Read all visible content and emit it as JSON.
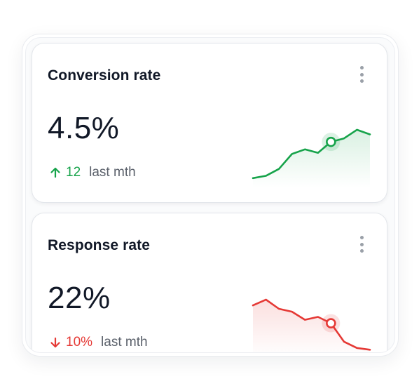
{
  "cards": [
    {
      "title": "Conversion rate",
      "value": "4.5%",
      "delta": "12",
      "direction": "up",
      "period": "last mth",
      "color": "#16a34a",
      "menu_icon": "more-vertical-icon",
      "trend_icon": "arrow-up-icon",
      "sparkline": {
        "values": [
          1.0,
          1.4,
          2.6,
          5.2,
          6.0,
          5.4,
          7.3,
          7.9,
          9.4,
          8.6
        ],
        "highlight_index": 6
      }
    },
    {
      "title": "Response rate",
      "value": "22%",
      "delta": "10%",
      "direction": "down",
      "period": "last mth",
      "color": "#e53935",
      "menu_icon": "more-vertical-icon",
      "trend_icon": "arrow-down-icon",
      "sparkline": {
        "values": [
          8.4,
          9.4,
          7.8,
          7.3,
          5.9,
          6.4,
          5.3,
          2.1,
          1.0,
          0.7
        ],
        "highlight_index": 6
      }
    }
  ]
}
